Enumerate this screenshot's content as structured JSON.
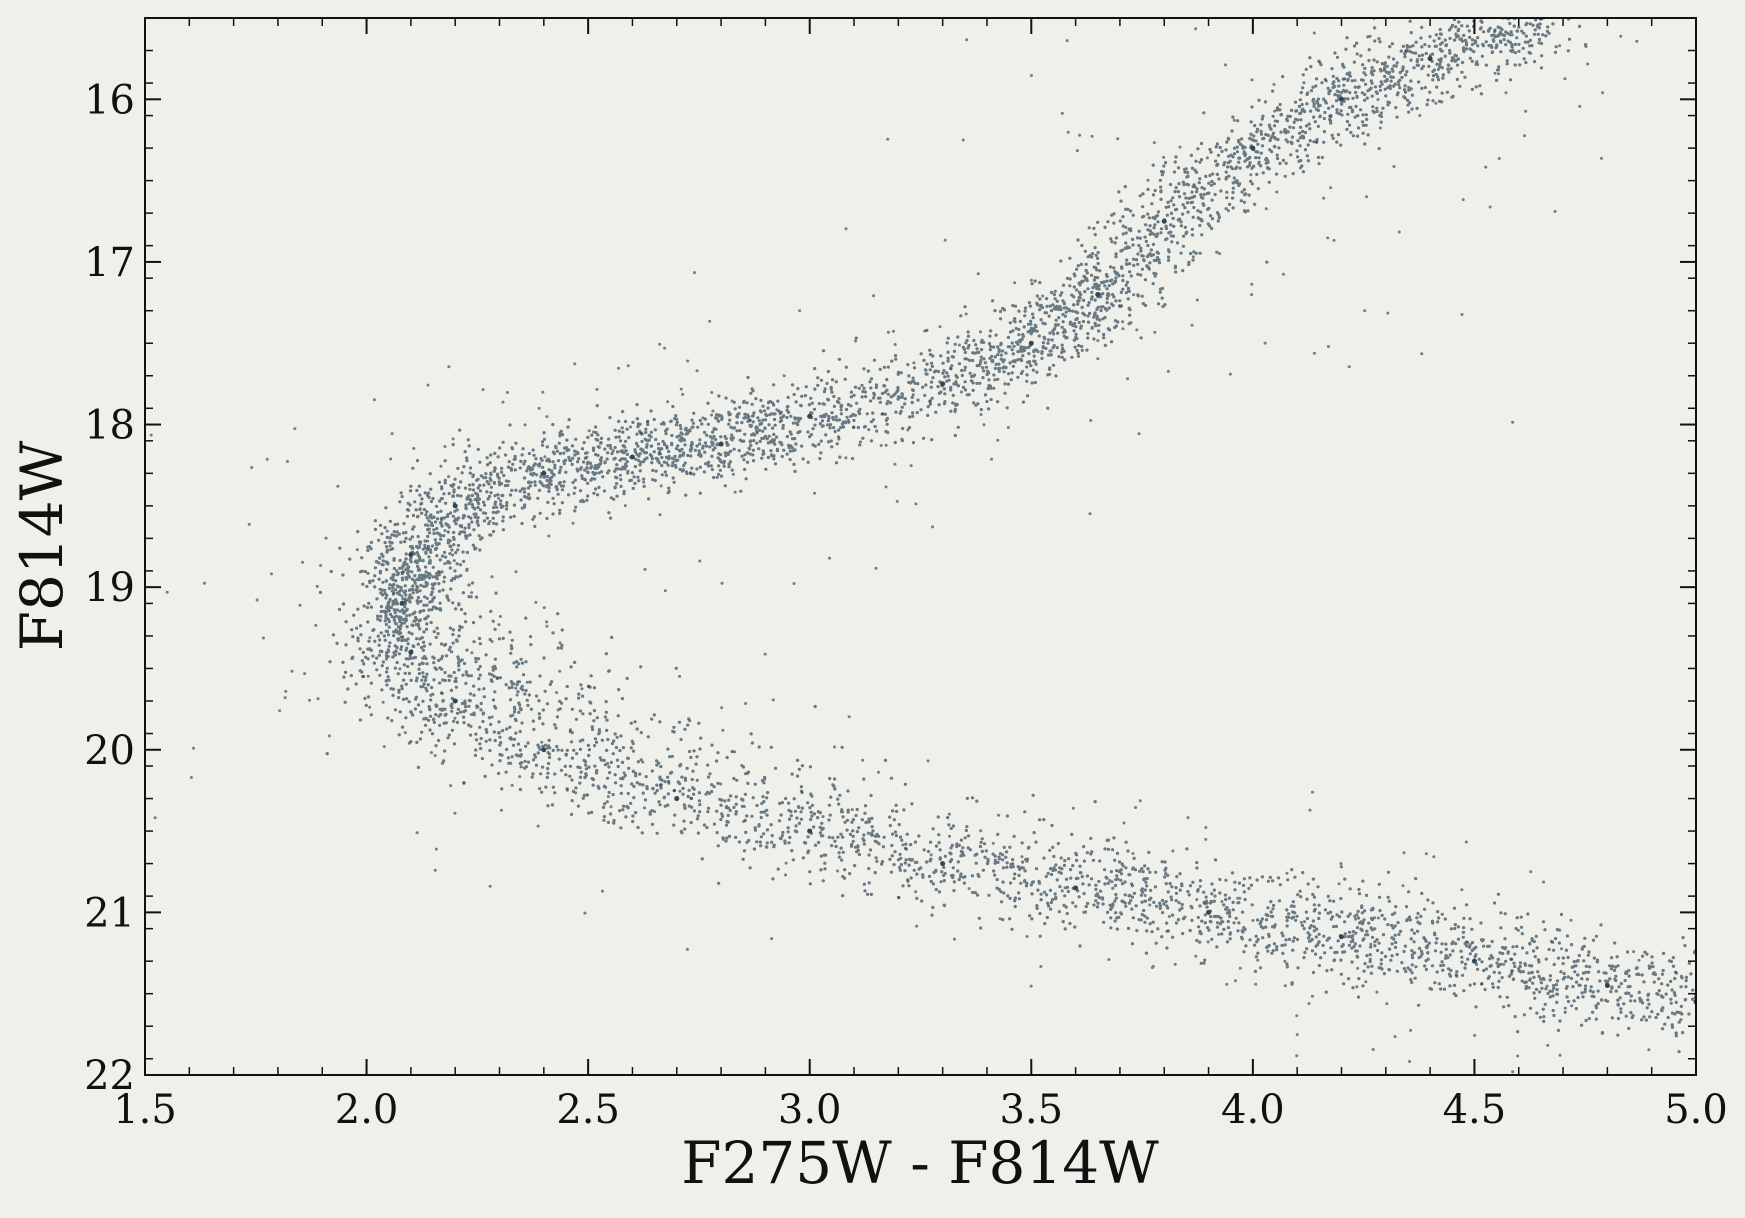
{
  "chart_data": {
    "type": "scatter",
    "title": "",
    "xlabel": "F275W - F814W",
    "ylabel": "F814W",
    "xlim": [
      1.5,
      5.0
    ],
    "ylim": [
      22,
      15.5
    ],
    "y_inverted": true,
    "grid": false,
    "legend": "none",
    "x_ticks": [
      1.5,
      2.0,
      2.5,
      3.0,
      3.5,
      4.0,
      4.5,
      5.0
    ],
    "x_tick_labels": [
      "1.5",
      "2.0",
      "2.5",
      "3.0",
      "3.5",
      "4.0",
      "4.5",
      "5.0"
    ],
    "y_ticks": [
      16,
      17,
      18,
      19,
      20,
      21,
      22
    ],
    "y_tick_labels": [
      "16",
      "17",
      "18",
      "19",
      "20",
      "21",
      "22"
    ],
    "x_minor_step": 0.1,
    "y_minor_step": 0.2,
    "marker_color": "#2e4757",
    "background_color": "#f0f0eb",
    "series": [
      {
        "description_points": "color-magnitude sequence (ridge line); scatter of ~tens of thousands of stars around it",
        "points": [
          {
            "x": 4.65,
            "y": 15.5
          },
          {
            "x": 4.4,
            "y": 15.75
          },
          {
            "x": 4.2,
            "y": 16.0
          },
          {
            "x": 4.0,
            "y": 16.3
          },
          {
            "x": 3.8,
            "y": 16.75
          },
          {
            "x": 3.65,
            "y": 17.2
          },
          {
            "x": 3.5,
            "y": 17.5
          },
          {
            "x": 3.3,
            "y": 17.75
          },
          {
            "x": 3.0,
            "y": 17.95
          },
          {
            "x": 2.8,
            "y": 18.12
          },
          {
            "x": 2.6,
            "y": 18.2
          },
          {
            "x": 2.4,
            "y": 18.3
          },
          {
            "x": 2.2,
            "y": 18.5
          },
          {
            "x": 2.1,
            "y": 18.8
          },
          {
            "x": 2.08,
            "y": 19.1
          },
          {
            "x": 2.1,
            "y": 19.4
          },
          {
            "x": 2.2,
            "y": 19.7
          },
          {
            "x": 2.4,
            "y": 20.0
          },
          {
            "x": 2.7,
            "y": 20.3
          },
          {
            "x": 3.0,
            "y": 20.5
          },
          {
            "x": 3.3,
            "y": 20.7
          },
          {
            "x": 3.6,
            "y": 20.85
          },
          {
            "x": 3.9,
            "y": 21.0
          },
          {
            "x": 4.2,
            "y": 21.15
          },
          {
            "x": 4.5,
            "y": 21.3
          },
          {
            "x": 4.8,
            "y": 21.45
          },
          {
            "x": 5.0,
            "y": 21.55
          }
        ]
      }
    ]
  }
}
